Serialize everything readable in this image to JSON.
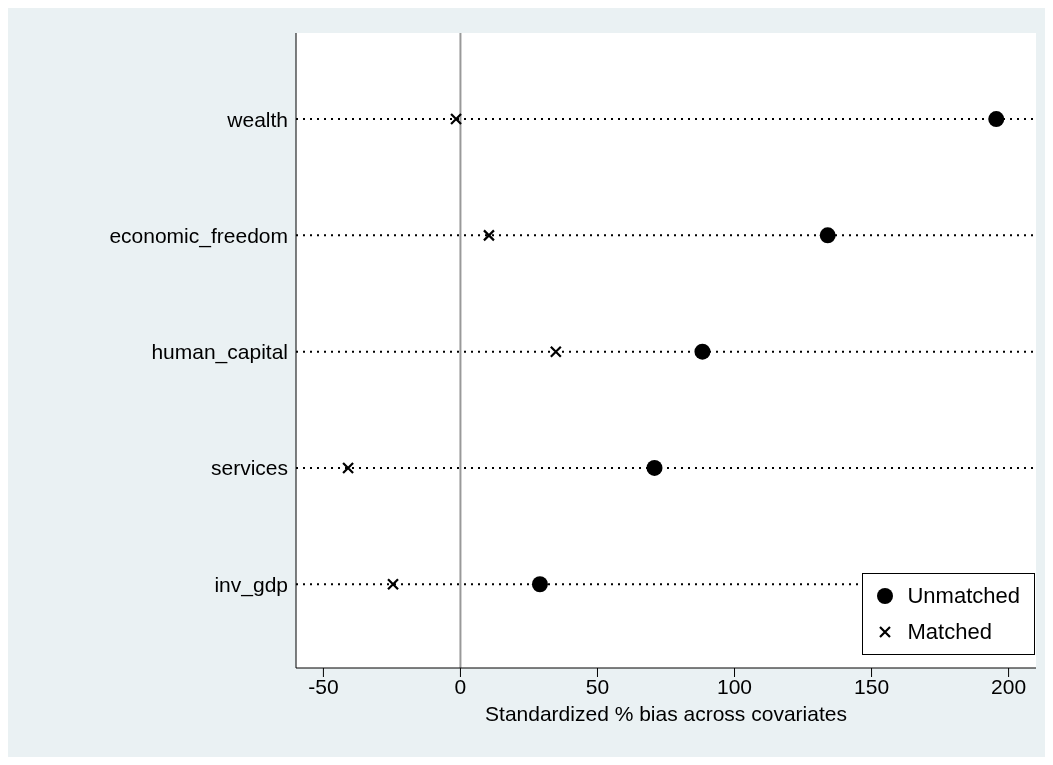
{
  "chart_data": {
    "type": "scatter",
    "xlabel": "Standardized % bias across covariates",
    "categories": [
      "wealth",
      "economic_freedom",
      "human_capital",
      "services",
      "inv_gdp"
    ],
    "series": [
      {
        "name": "Unmatched",
        "color": "#000000",
        "marker": "circle",
        "values": [
          195.5,
          134,
          88.3,
          70.8,
          29
        ]
      },
      {
        "name": "Matched",
        "color": "#000000",
        "marker": "cross",
        "values": [
          -1.6,
          10.4,
          34.8,
          -41,
          -24.6
        ]
      }
    ],
    "xlim": [
      -60,
      210
    ],
    "xticks": [
      -50,
      0,
      50,
      100,
      150,
      200
    ],
    "orientation": "horizontal",
    "ref_lines": [
      {
        "axis": "x",
        "value": 0,
        "color": "#999999"
      }
    ],
    "grid": "y",
    "legend": "bottom right"
  }
}
